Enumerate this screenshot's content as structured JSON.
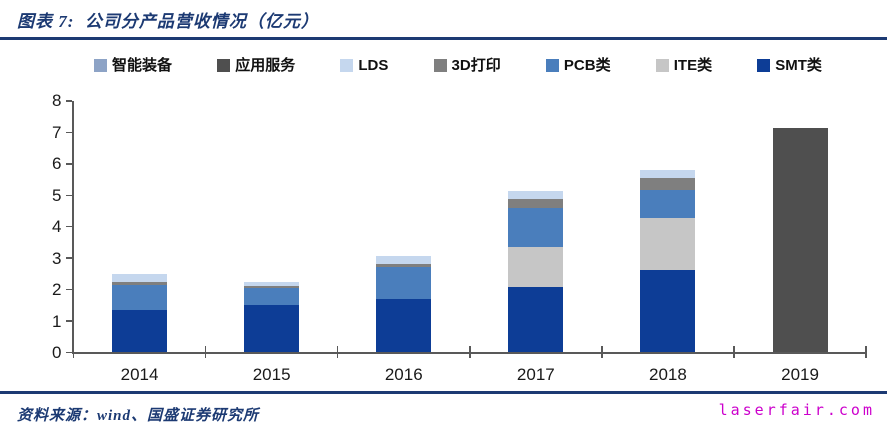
{
  "header": {
    "title": "图表 7:  公司分产品营收情况（亿元）"
  },
  "footer": {
    "source": "资料来源：wind、国盛证券研究所",
    "watermark": "laserfair.com"
  },
  "colors": {
    "accent_navy": "#1c3a73",
    "axis": "#595959",
    "watermark": "#cc00cc",
    "smt": "#0d3d96",
    "ite": "#c6c6c6",
    "pcb": "#4a7ebc",
    "print3d": "#7f7f7f",
    "lds": "#c5d7ee",
    "app_service": "#4f4f4f",
    "smart_equipment": "#8da3c6"
  },
  "chart_data": {
    "type": "bar",
    "stacked": true,
    "title": "公司分产品营收情况（亿元）",
    "xlabel": "",
    "ylabel": "",
    "categories": [
      "2014",
      "2015",
      "2016",
      "2017",
      "2018",
      "2019"
    ],
    "series": [
      {
        "name": "SMT类",
        "color": "#0d3d96",
        "values": [
          1.35,
          1.5,
          1.7,
          2.08,
          2.61,
          0
        ]
      },
      {
        "name": "ITE类",
        "color": "#c6c6c6",
        "values": [
          0,
          0,
          0,
          1.27,
          1.68,
          0
        ]
      },
      {
        "name": "PCB类",
        "color": "#4a7ebc",
        "values": [
          0.8,
          0.55,
          1.02,
          1.26,
          0.89,
          0
        ]
      },
      {
        "name": "3D打印",
        "color": "#7f7f7f",
        "values": [
          0.08,
          0.06,
          0.08,
          0.26,
          0.38,
          0
        ]
      },
      {
        "name": "LDS",
        "color": "#c5d7ee",
        "values": [
          0.28,
          0.14,
          0.28,
          0.27,
          0.24,
          0
        ]
      },
      {
        "name": "应用服务",
        "color": "#4f4f4f",
        "values": [
          0,
          0,
          0,
          0,
          0,
          7.13
        ]
      },
      {
        "name": "智能装备",
        "color": "#8da3c6",
        "values": [
          0,
          0,
          0,
          0,
          0,
          0
        ]
      }
    ],
    "stack_order_bottom_to_top": [
      "SMT类",
      "ITE类",
      "PCB类",
      "3D打印",
      "LDS",
      "应用服务",
      "智能装备"
    ],
    "legend_order": [
      "智能装备",
      "应用服务",
      "LDS",
      "3D打印",
      "PCB类",
      "ITE类",
      "SMT类"
    ],
    "totals": [
      2.51,
      2.25,
      3.08,
      5.14,
      5.8,
      7.13
    ],
    "ylim": [
      0,
      8
    ],
    "yticks": [
      0,
      1,
      2,
      3,
      4,
      5,
      6,
      7,
      8
    ],
    "grid": false,
    "legend_position": "top"
  }
}
